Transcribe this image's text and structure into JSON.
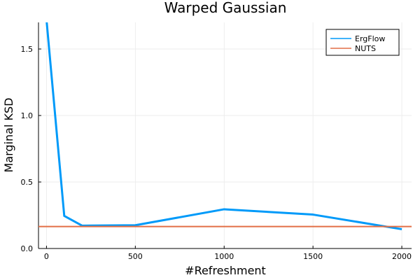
{
  "chart_data": {
    "type": "line",
    "title": "Warped Gaussian",
    "xlabel": "#Refreshment",
    "ylabel": "Marginal KSD",
    "xlim": [
      -45,
      2055
    ],
    "ylim": [
      0,
      1.7
    ],
    "xticks": [
      0,
      500,
      1000,
      1500,
      2000
    ],
    "xtick_labels": [
      "0",
      "500",
      "1000",
      "1500",
      "2000"
    ],
    "yticks": [
      0,
      0.5,
      1.0,
      1.5
    ],
    "ytick_labels": [
      "0.0",
      "0.5",
      "1.0",
      "1.5"
    ],
    "grid": true,
    "legend_position": "top-right",
    "series": [
      {
        "name": "ErgFlow",
        "color": "#009af9",
        "x": [
          0,
          100,
          200,
          500,
          1000,
          1500,
          2000
        ],
        "y": [
          1.72,
          0.245,
          0.172,
          0.175,
          0.295,
          0.255,
          0.145
        ]
      },
      {
        "name": "NUTS",
        "color": "#e26f46",
        "hline": 0.165
      }
    ]
  }
}
